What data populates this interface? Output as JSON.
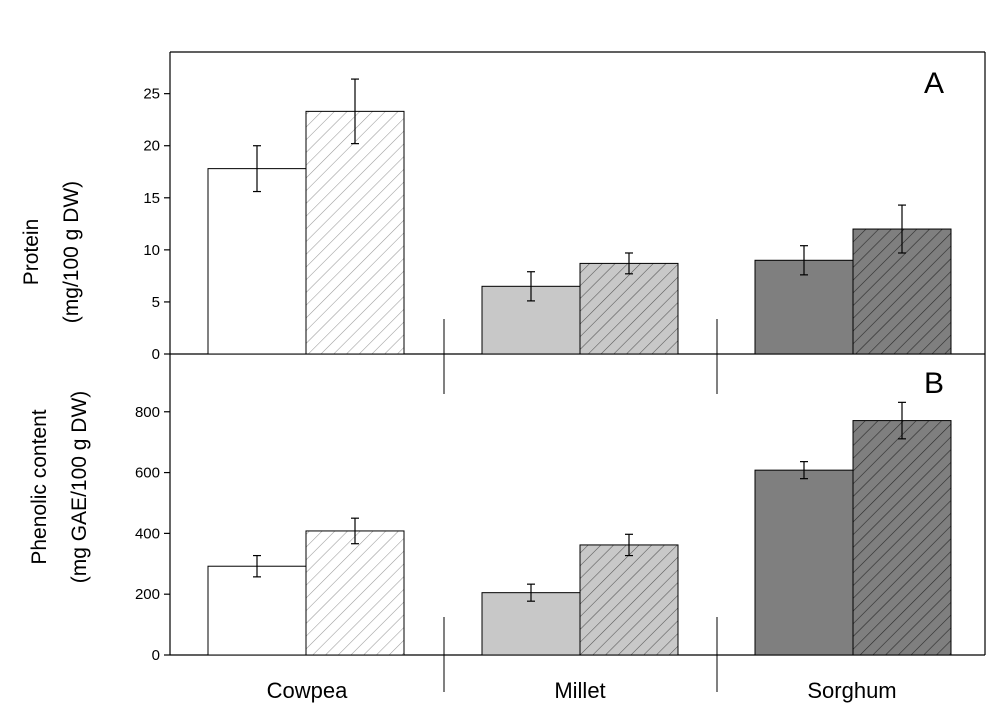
{
  "colors": {
    "cowpea": "#ffffff",
    "millet": "#c8c8c8",
    "sorghum": "#7f7f7f",
    "hatch_light": "#9a9a9a",
    "hatch_dark": "#3a3a3a",
    "edge": "#000000"
  },
  "chart_data": [
    {
      "type": "bar",
      "panel_label": "A",
      "ylabel_line1": "Protein",
      "ylabel_line2": "(mg/100 g DW)",
      "categories": [
        "Cowpea",
        "Millet",
        "Sorghum"
      ],
      "ylim": [
        0,
        29
      ],
      "yticks": [
        0,
        5,
        10,
        15,
        20,
        25
      ],
      "grid": false,
      "series": [
        {
          "hatched": false,
          "values": [
            17.8,
            6.5,
            9.0
          ],
          "errors": [
            2.2,
            1.4,
            1.4
          ]
        },
        {
          "hatched": true,
          "values": [
            23.3,
            8.7,
            12.0
          ],
          "errors": [
            3.1,
            1.0,
            2.3
          ]
        }
      ]
    },
    {
      "type": "bar",
      "panel_label": "B",
      "ylabel_line1": "Phenolic content",
      "ylabel_line2": "(mg GAE/100 g DW)",
      "categories": [
        "Cowpea",
        "Millet",
        "Sorghum"
      ],
      "ylim": [
        0,
        990
      ],
      "yticks": [
        0,
        200,
        400,
        600,
        800
      ],
      "grid": false,
      "series": [
        {
          "hatched": false,
          "values": [
            292,
            205,
            608
          ],
          "errors": [
            35,
            28,
            28
          ]
        },
        {
          "hatched": true,
          "values": [
            408,
            362,
            771
          ],
          "errors": [
            42,
            35,
            60
          ]
        }
      ]
    }
  ]
}
